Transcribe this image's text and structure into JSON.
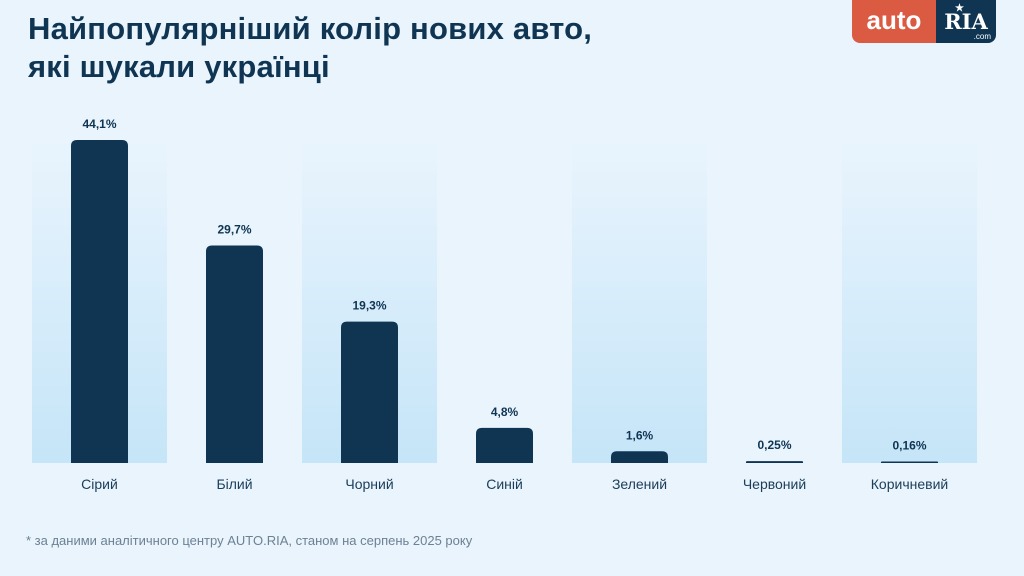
{
  "title_lines": [
    "Найпопулярніший колір нових авто,",
    "які шукали українці"
  ],
  "logo": {
    "left": "auto",
    "right": "RIA",
    "suffix": ".com"
  },
  "footnote": "* за даними аналітичного центру AUTO.RIA, станом на серпень 2025 року",
  "colors": {
    "bar": "#0f3553",
    "label": "#0f3553",
    "background": "#e9f4fd",
    "column_highlight": "#c5e5f8",
    "accent": "#db5a42"
  },
  "chart_data": {
    "type": "bar",
    "categories": [
      "Сірий",
      "Білий",
      "Чорний",
      "Синій",
      "Зелений",
      "Червоний",
      "Коричневий"
    ],
    "values": [
      44.1,
      29.7,
      19.3,
      4.8,
      1.6,
      0.25,
      0.16
    ],
    "data_labels": [
      "44,1%",
      "29,7%",
      "19,3%",
      "4,8%",
      "1,6%",
      "0,25%",
      "0,16%"
    ],
    "unit": "%",
    "ylim": [
      0,
      44.1
    ],
    "grid": false,
    "legend": "none"
  }
}
